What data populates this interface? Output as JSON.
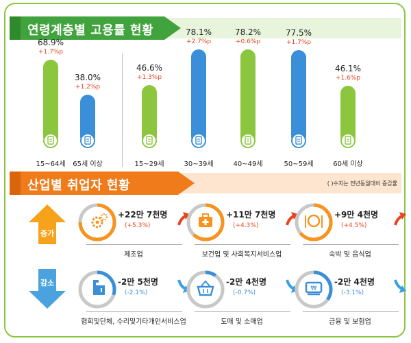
{
  "section1": {
    "title": "연령계층별 고용률 현황"
  },
  "section2": {
    "title": "산업별 취업자 현황",
    "note": "( )수치는 전년동월대비 증감률"
  },
  "colors": {
    "green": "#8cc63f",
    "blue": "#3a8fd8",
    "orange": "#f7931e",
    "red": "#e8451d",
    "gray": "#c8c8c8"
  },
  "chart_data": {
    "type": "bar",
    "title": "연령계층별 고용률 현황",
    "categories": [
      "15~64세",
      "65세 이상",
      "15~29세",
      "30~39세",
      "40~49세",
      "50~59세",
      "60세 이상"
    ],
    "values": [
      68.9,
      38.0,
      46.6,
      78.1,
      78.2,
      77.5,
      46.1
    ],
    "value_labels": [
      "68.9%",
      "38.0%",
      "46.6%",
      "78.1%",
      "78.2%",
      "77.5%",
      "46.1%"
    ],
    "changes": [
      "+1.7%p",
      "+1.2%p",
      "+1.3%p",
      "+2.7%p",
      "+0.6%p",
      "+1.7%p",
      "+1.6%p"
    ],
    "bar_colors": [
      "green",
      "blue",
      "green",
      "blue",
      "green",
      "blue",
      "green"
    ],
    "ylim": [
      0,
      80
    ]
  },
  "increase": {
    "label": "증가",
    "items": [
      {
        "value": "+22만 7천명",
        "pct": "(+5.3%)",
        "name": "제조업",
        "icon": "gear-icon",
        "share": 0.75
      },
      {
        "value": "+11만 7천명",
        "pct": "(+4.3%)",
        "name": "보건업 및 사회복지서비스업",
        "icon": "first-aid-kit-icon",
        "share": 0.62
      },
      {
        "value": "+9만 4천명",
        "pct": "(+4.5%)",
        "name": "숙박 및 음식업",
        "icon": "dining-icon",
        "share": 0.64
      }
    ]
  },
  "decrease": {
    "label": "감소",
    "items": [
      {
        "value": "-2만 5천명",
        "pct": "(-2.1%)",
        "name": "협회및단체, 수리및기타개인서비스업",
        "icon": "repair-tools-icon",
        "share": 0.3
      },
      {
        "value": "-2만 4천명",
        "pct": "(-0.7%)",
        "name": "도매 및 소매업",
        "icon": "shopping-basket-icon",
        "share": 0.1
      },
      {
        "value": "-2만 4천명",
        "pct": "(-3.1%)",
        "name": "금융 및 보험업",
        "icon": "atm-card-icon",
        "share": 0.35
      }
    ]
  }
}
